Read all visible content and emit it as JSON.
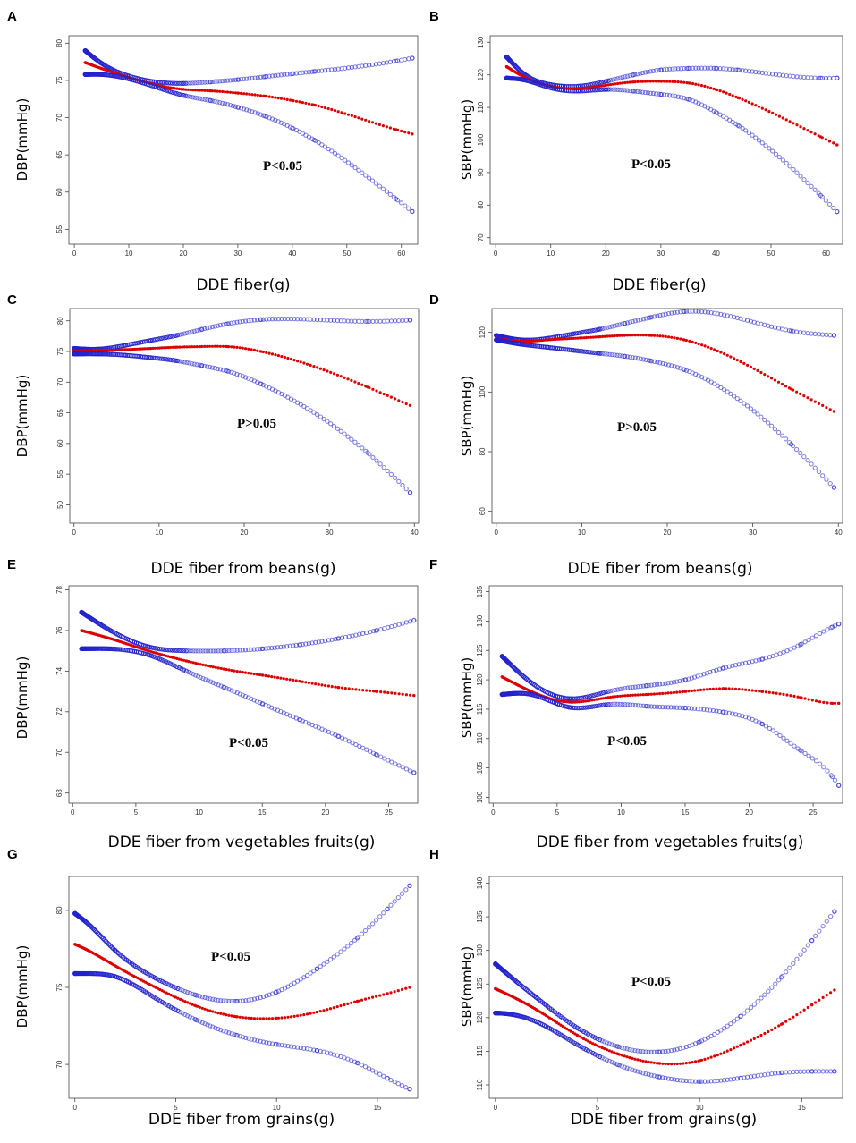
{
  "chart_data": [
    {
      "panel": "A",
      "type": "line",
      "xlabel": "DDE fiber(g)",
      "ylabel": "DBP(mmHg)",
      "xticks": [
        0,
        10,
        20,
        30,
        40,
        50,
        60
      ],
      "yticks": [
        55,
        60,
        65,
        70,
        75,
        80
      ],
      "xlim": [
        -1,
        63
      ],
      "ylim": [
        53,
        81
      ],
      "annotation": "P<0.05",
      "series": [
        {
          "name": "upper",
          "color": "#2222cc",
          "x": [
            2,
            5,
            10,
            15,
            20,
            25,
            30,
            35,
            40,
            44,
            59,
            62
          ],
          "y": [
            79.0,
            77.3,
            75.6,
            74.8,
            74.6,
            74.8,
            75.1,
            75.5,
            75.9,
            76.2,
            77.6,
            78.0
          ]
        },
        {
          "name": "estimate",
          "color": "#dd0000",
          "x": [
            2,
            5,
            10,
            15,
            20,
            25,
            30,
            35,
            40,
            44,
            59,
            62
          ],
          "y": [
            77.4,
            76.6,
            75.4,
            74.4,
            73.8,
            73.6,
            73.3,
            72.9,
            72.3,
            71.7,
            68.4,
            67.8
          ]
        },
        {
          "name": "lower",
          "color": "#2222cc",
          "x": [
            2,
            5,
            10,
            15,
            20,
            25,
            30,
            35,
            40,
            44,
            59,
            62
          ],
          "y": [
            75.8,
            75.8,
            75.2,
            74.1,
            73.0,
            72.3,
            71.4,
            70.2,
            68.6,
            67.0,
            59.1,
            57.4
          ]
        }
      ]
    },
    {
      "panel": "B",
      "type": "line",
      "xlabel": "DDE fiber(g)",
      "ylabel": "SBP(mmHg)",
      "xticks": [
        0,
        10,
        20,
        30,
        40,
        50,
        60
      ],
      "yticks": [
        70,
        80,
        90,
        100,
        110,
        120,
        130
      ],
      "xlim": [
        -1,
        63
      ],
      "ylim": [
        68,
        132
      ],
      "annotation": "P<0.05",
      "series": [
        {
          "name": "upper",
          "color": "#2222cc",
          "x": [
            2,
            5,
            10,
            15,
            20,
            25,
            30,
            35,
            40,
            44,
            59,
            62
          ],
          "y": [
            125.5,
            120.5,
            117.0,
            116.5,
            118.0,
            120.0,
            121.5,
            122.0,
            122.0,
            121.5,
            119.0,
            119.0
          ]
        },
        {
          "name": "estimate",
          "color": "#dd0000",
          "x": [
            2,
            5,
            10,
            15,
            20,
            25,
            30,
            35,
            40,
            44,
            59,
            62
          ],
          "y": [
            122.5,
            119.5,
            116.5,
            115.8,
            116.8,
            117.8,
            118.0,
            117.5,
            115.5,
            113.0,
            101.0,
            98.5
          ]
        },
        {
          "name": "lower",
          "color": "#2222cc",
          "x": [
            2,
            5,
            10,
            15,
            20,
            25,
            30,
            35,
            40,
            44,
            59,
            62
          ],
          "y": [
            119.0,
            118.5,
            116.0,
            115.0,
            115.5,
            115.0,
            114.0,
            112.5,
            108.5,
            104.5,
            83.0,
            78.0
          ]
        }
      ]
    },
    {
      "panel": "C",
      "type": "line",
      "xlabel": "DDE fiber from beans(g)",
      "ylabel": "DBP(mmHg)",
      "xticks": [
        0,
        10,
        20,
        30,
        40
      ],
      "yticks": [
        50,
        55,
        60,
        65,
        70,
        75,
        80
      ],
      "xlim": [
        -0.5,
        40.5
      ],
      "ylim": [
        47,
        82
      ],
      "annotation": "P>0.05",
      "series": [
        {
          "name": "upper",
          "color": "#2222cc",
          "x": [
            0,
            3,
            6,
            9,
            12,
            15,
            18,
            22,
            34.5,
            39.5
          ],
          "y": [
            75.5,
            75.4,
            76.0,
            76.8,
            77.6,
            78.6,
            79.5,
            80.2,
            79.9,
            80.1
          ]
        },
        {
          "name": "estimate",
          "color": "#dd0000",
          "x": [
            0,
            3,
            6,
            9,
            12,
            15,
            18,
            22,
            34.5,
            39.5
          ],
          "y": [
            75.0,
            75.1,
            75.3,
            75.5,
            75.7,
            75.8,
            75.8,
            75.0,
            69.2,
            66.2
          ]
        },
        {
          "name": "lower",
          "color": "#2222cc",
          "x": [
            0,
            3,
            6,
            9,
            12,
            15,
            18,
            22,
            34.5,
            39.5
          ],
          "y": [
            74.6,
            74.6,
            74.4,
            74.0,
            73.5,
            72.7,
            71.8,
            69.7,
            58.5,
            52.0
          ]
        }
      ]
    },
    {
      "panel": "D",
      "type": "line",
      "xlabel": "DDE fiber from beans(g)",
      "ylabel": "SBP(mmHg)",
      "xticks": [
        0,
        10,
        20,
        30,
        40
      ],
      "yticks": [
        60,
        80,
        100,
        120
      ],
      "xlim": [
        -0.5,
        40.5
      ],
      "ylim": [
        56,
        128
      ],
      "annotation": "P>0.05",
      "series": [
        {
          "name": "upper",
          "color": "#2222cc",
          "x": [
            0,
            3,
            6,
            9,
            12,
            15,
            18,
            22,
            34.5,
            39.5
          ],
          "y": [
            119.0,
            117.5,
            118.0,
            119.5,
            121.0,
            123.0,
            125.0,
            127.0,
            120.5,
            119.0
          ]
        },
        {
          "name": "estimate",
          "color": "#dd0000",
          "x": [
            0,
            3,
            6,
            9,
            12,
            15,
            18,
            22,
            34.5,
            39.5
          ],
          "y": [
            118.0,
            117.0,
            117.5,
            118.0,
            118.5,
            119.0,
            119.0,
            117.5,
            101.0,
            93.5
          ]
        },
        {
          "name": "lower",
          "color": "#2222cc",
          "x": [
            0,
            3,
            6,
            9,
            12,
            15,
            18,
            22,
            34.5,
            39.5
          ],
          "y": [
            117.5,
            116.0,
            115.0,
            114.0,
            113.0,
            112.0,
            110.5,
            107.5,
            82.5,
            68.0
          ]
        }
      ]
    },
    {
      "panel": "E",
      "type": "line",
      "xlabel": "DDE fiber from vegetables fruits(g)",
      "ylabel": "DBP(mmHg)",
      "xticks": [
        0,
        5,
        10,
        15,
        20,
        25
      ],
      "yticks": [
        68,
        70,
        72,
        74,
        76,
        78
      ],
      "xlim": [
        -0.3,
        27.3
      ],
      "ylim": [
        67.5,
        78.2
      ],
      "annotation": "P<0.05",
      "series": [
        {
          "name": "upper",
          "color": "#2222cc",
          "x": [
            0.7,
            3,
            6,
            9,
            12,
            15,
            18,
            21,
            24,
            27
          ],
          "y": [
            76.9,
            76.0,
            75.2,
            75.0,
            75.0,
            75.1,
            75.3,
            75.6,
            76.0,
            76.5
          ]
        },
        {
          "name": "estimate",
          "color": "#dd0000",
          "x": [
            0.7,
            3,
            6,
            9,
            12,
            15,
            18,
            21,
            24,
            27
          ],
          "y": [
            76.0,
            75.6,
            75.0,
            74.5,
            74.1,
            73.8,
            73.5,
            73.2,
            73.0,
            72.8
          ]
        },
        {
          "name": "lower",
          "color": "#2222cc",
          "x": [
            0.7,
            3,
            6,
            9,
            12,
            15,
            18,
            21,
            24,
            27
          ],
          "y": [
            75.1,
            75.1,
            74.8,
            74.0,
            73.2,
            72.4,
            71.6,
            70.8,
            69.9,
            69.0
          ]
        }
      ]
    },
    {
      "panel": "F",
      "type": "line",
      "xlabel": "DDE fiber from vegetables fruits(g)",
      "ylabel": "SBP(mmHg)",
      "xticks": [
        0,
        5,
        10,
        15,
        20,
        25
      ],
      "yticks": [
        100,
        105,
        110,
        115,
        120,
        125,
        130,
        135
      ],
      "xlim": [
        -0.3,
        27.3
      ],
      "ylim": [
        99,
        136
      ],
      "annotation": "P<0.05",
      "series": [
        {
          "name": "upper",
          "color": "#2222cc",
          "x": [
            0.7,
            3,
            6,
            9,
            12,
            15,
            18,
            21,
            24,
            26.5,
            27
          ],
          "y": [
            124.0,
            119.5,
            116.8,
            118.0,
            119.0,
            120.0,
            122.0,
            123.5,
            126.0,
            129.0,
            129.5
          ]
        },
        {
          "name": "estimate",
          "color": "#dd0000",
          "x": [
            0.7,
            3,
            6,
            9,
            12,
            15,
            18,
            21,
            24,
            26.5,
            27
          ],
          "y": [
            120.5,
            118.0,
            116.2,
            117.0,
            117.5,
            118.0,
            118.5,
            118.0,
            117.0,
            116.0,
            116.0
          ]
        },
        {
          "name": "lower",
          "color": "#2222cc",
          "x": [
            0.7,
            3,
            6,
            9,
            12,
            15,
            18,
            21,
            24,
            26.5,
            27
          ],
          "y": [
            117.5,
            117.5,
            115.3,
            115.8,
            115.5,
            115.2,
            114.5,
            112.5,
            108.0,
            103.5,
            102.0
          ]
        }
      ]
    },
    {
      "panel": "G",
      "type": "line",
      "xlabel": "DDE fiber from grains(g)",
      "ylabel": "DBP(mmHg)",
      "xticks": [
        0,
        5,
        10,
        15
      ],
      "yticks": [
        70,
        75,
        80
      ],
      "xlim": [
        -0.3,
        17
      ],
      "ylim": [
        67.8,
        82.2
      ],
      "annotation": "P<0.05",
      "series": [
        {
          "name": "upper",
          "color": "#2222cc",
          "x": [
            0,
            0.5,
            2,
            4,
            6,
            8,
            10,
            12,
            14,
            15.5,
            16.6
          ],
          "y": [
            79.8,
            79.3,
            77.4,
            75.6,
            74.5,
            74.1,
            74.7,
            76.2,
            78.2,
            80.1,
            81.6
          ]
        },
        {
          "name": "estimate",
          "color": "#dd0000",
          "x": [
            0,
            0.5,
            2,
            4,
            6,
            8,
            10,
            12,
            14,
            15.5,
            16.6
          ],
          "y": [
            77.8,
            77.5,
            76.4,
            75.0,
            73.8,
            73.1,
            73.0,
            73.4,
            74.1,
            74.6,
            75.0
          ]
        },
        {
          "name": "lower",
          "color": "#2222cc",
          "x": [
            0,
            0.5,
            2,
            4,
            6,
            8,
            10,
            12,
            14,
            15.5,
            16.6
          ],
          "y": [
            75.9,
            75.9,
            75.7,
            74.3,
            72.9,
            71.9,
            71.3,
            70.9,
            70.1,
            69.1,
            68.4
          ]
        }
      ]
    },
    {
      "panel": "H",
      "type": "line",
      "xlabel": "DDE fiber from grains(g)",
      "ylabel": "SBP(mmHg)",
      "xticks": [
        0,
        5,
        10,
        15
      ],
      "yticks": [
        110,
        115,
        120,
        125,
        130,
        135,
        140
      ],
      "xlim": [
        -0.3,
        17
      ],
      "ylim": [
        108,
        141
      ],
      "annotation": "P<0.05",
      "series": [
        {
          "name": "upper",
          "color": "#2222cc",
          "x": [
            0,
            0.5,
            2,
            4,
            6,
            8,
            10,
            12,
            14,
            15.5,
            16.6
          ],
          "y": [
            128.0,
            126.7,
            123.0,
            118.5,
            115.7,
            114.9,
            116.4,
            120.2,
            126.0,
            131.5,
            135.8
          ]
        },
        {
          "name": "estimate",
          "color": "#dd0000",
          "x": [
            0,
            0.5,
            2,
            4,
            6,
            8,
            10,
            12,
            14,
            15.5,
            16.6
          ],
          "y": [
            124.3,
            123.6,
            121.2,
            117.4,
            114.6,
            113.2,
            113.6,
            115.9,
            119.0,
            121.9,
            124.1
          ]
        },
        {
          "name": "lower",
          "color": "#2222cc",
          "x": [
            0,
            0.5,
            2,
            4,
            6,
            8,
            10,
            12,
            14,
            15.5,
            16.6
          ],
          "y": [
            120.7,
            120.6,
            119.4,
            116.0,
            113.0,
            111.2,
            110.5,
            111.0,
            111.8,
            112.0,
            112.0
          ]
        }
      ]
    }
  ]
}
